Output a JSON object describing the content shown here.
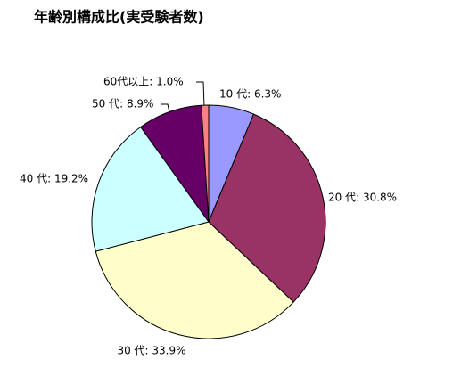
{
  "chart_data": {
    "type": "pie",
    "title": "年齢別構成比(実受験者数)",
    "values": [
      6.3,
      30.8,
      33.9,
      19.2,
      8.9,
      1.0
    ],
    "value_labels": [
      "10 代: 6.3%",
      "20 代: 30.8%",
      "30 代: 33.9%",
      "40 代: 19.2%",
      "50 代: 8.9%",
      "60代以上: 1.0%"
    ],
    "colors": [
      "#9999ff",
      "#993366",
      "#ffffcc",
      "#ccffff",
      "#660066",
      "#ff8080"
    ]
  }
}
